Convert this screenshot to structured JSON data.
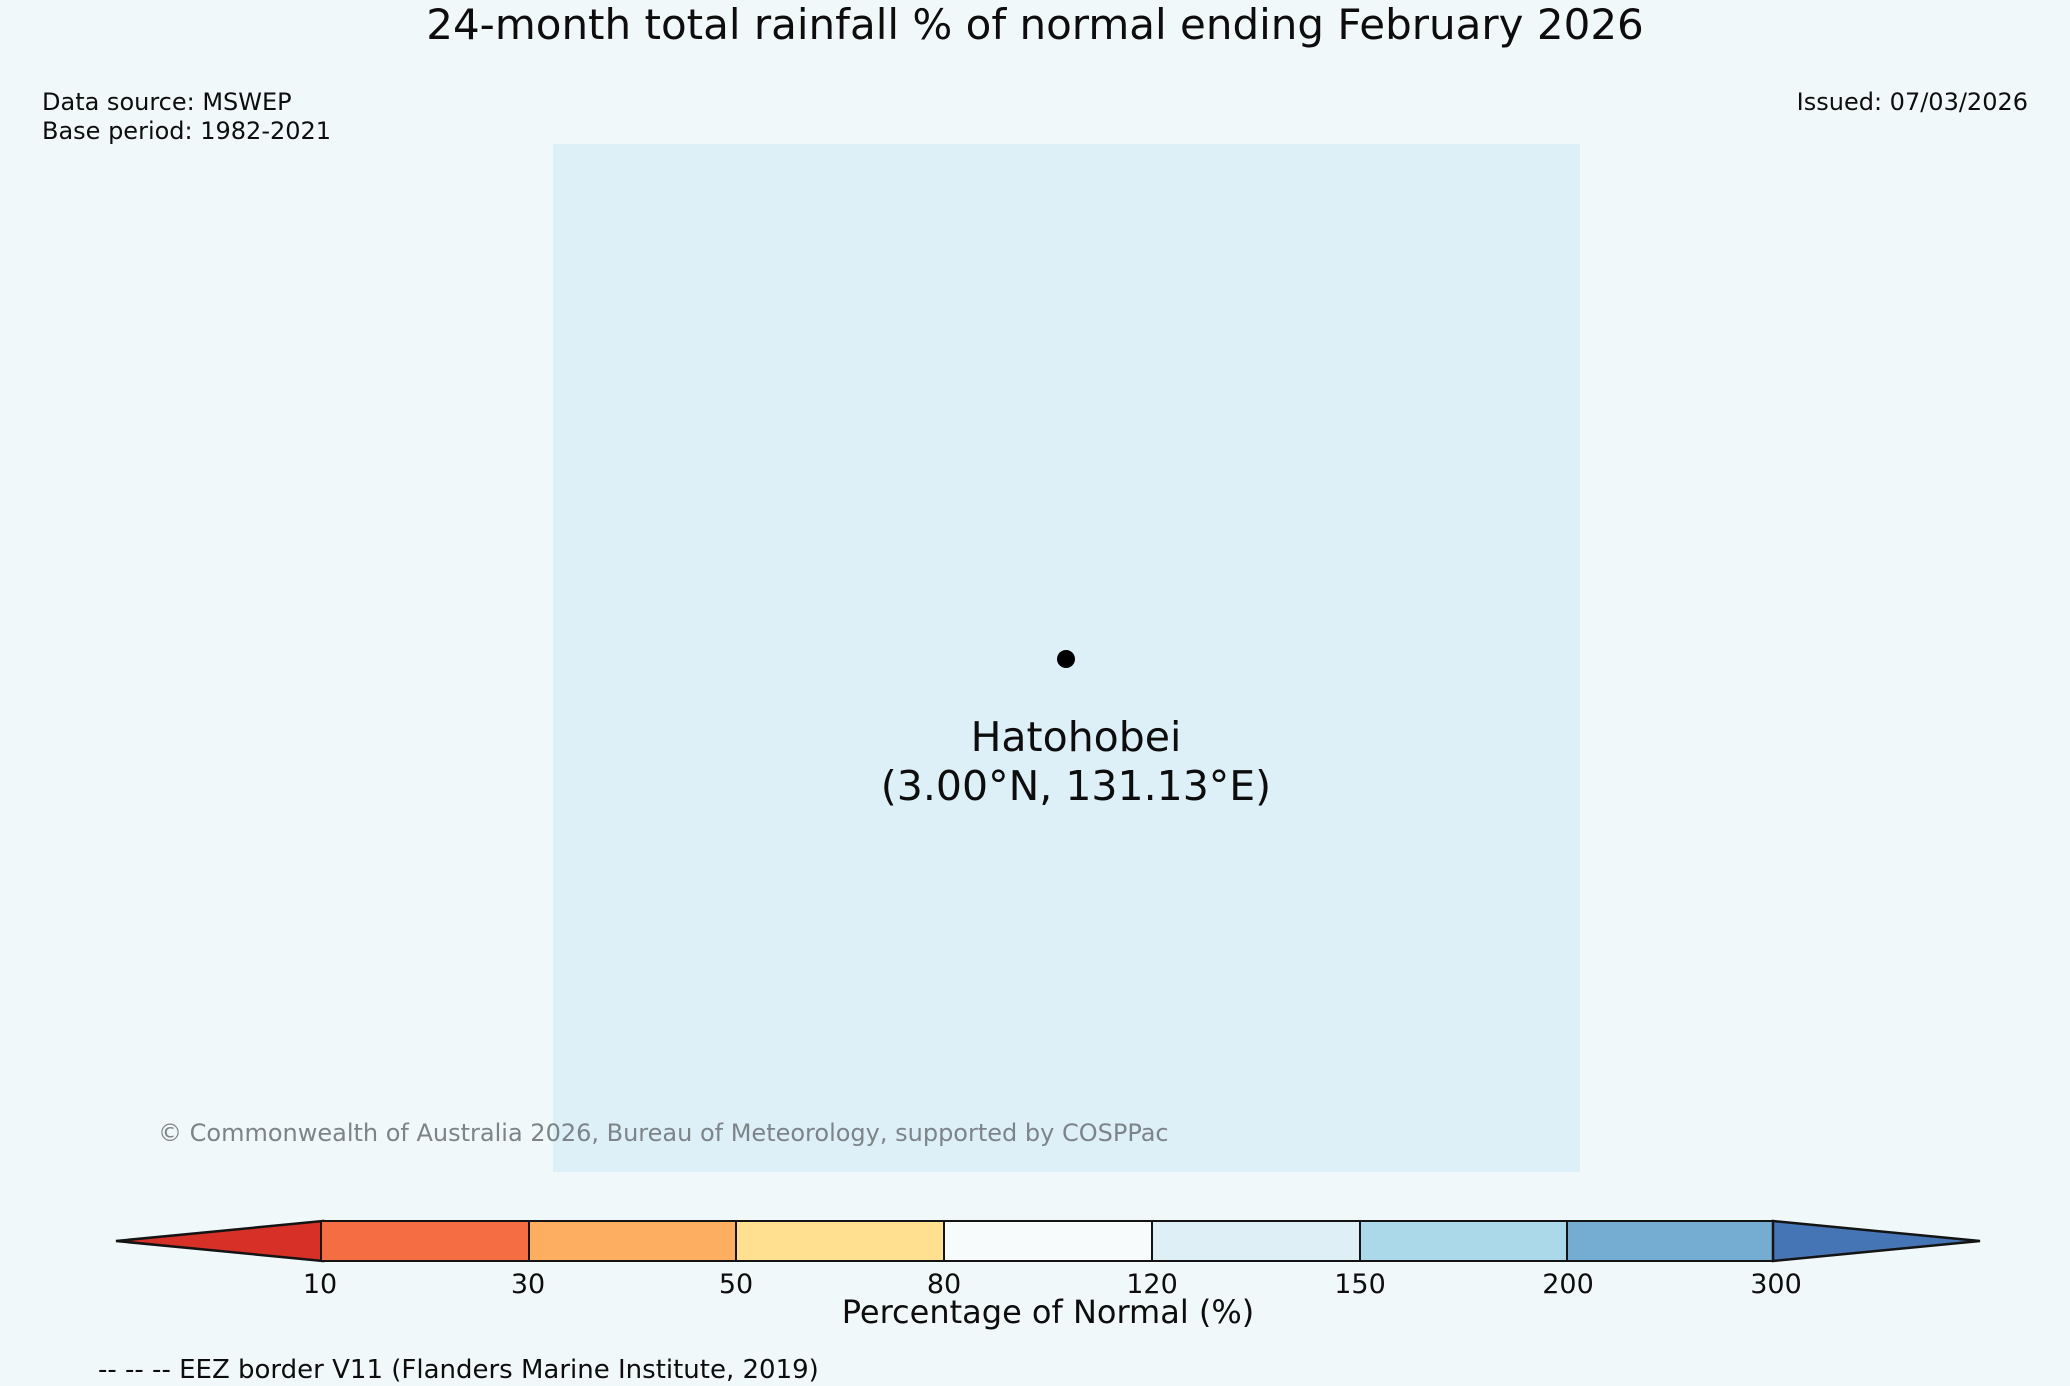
{
  "header": {
    "title": "24-month total rainfall % of normal ending February 2026",
    "data_source": "Data source: MSWEP",
    "base_period": "Base period: 1982-2021",
    "issued": "Issued: 07/03/2026"
  },
  "map": {
    "station_name": "Hatohobei",
    "station_coords": "(3.00°N, 131.13°E)",
    "marker": "black-dot",
    "copyright": "© Commonwealth of Australia 2026, Bureau of Meteorology, supported by COSPPac"
  },
  "chart_data": {
    "type": "map",
    "title": "24-month total rainfall % of normal ending February 2026",
    "station": {
      "name": "Hatohobei",
      "lat": "3.00°N",
      "lon": "131.13°E"
    },
    "colorbar": {
      "label": "Percentage of Normal (%)",
      "ticks": [
        "10",
        "30",
        "50",
        "80",
        "120",
        "150",
        "200",
        "300"
      ],
      "segment_colors": [
        "#f46d43",
        "#fdae61",
        "#fee090",
        "#f7fbfc",
        "#deeff6",
        "#abd9e9",
        "#74add1"
      ],
      "segment_ranges": [
        "10-30",
        "30-50",
        "50-80",
        "80-120",
        "120-150",
        "150-200",
        "200-300"
      ],
      "under_arrow_color": "#d73027",
      "over_arrow_color": "#4575b4",
      "outline_color": "#141414"
    }
  },
  "footer": {
    "eez_note": "-- -- -- EEZ border V11 (Flanders Marine Institute, 2019)"
  },
  "colors": {
    "page_background": "#f0f8fa",
    "map_background": "#ddf0f8",
    "copyright_text": "#7d8489",
    "title_text": "#0d0d0d"
  }
}
